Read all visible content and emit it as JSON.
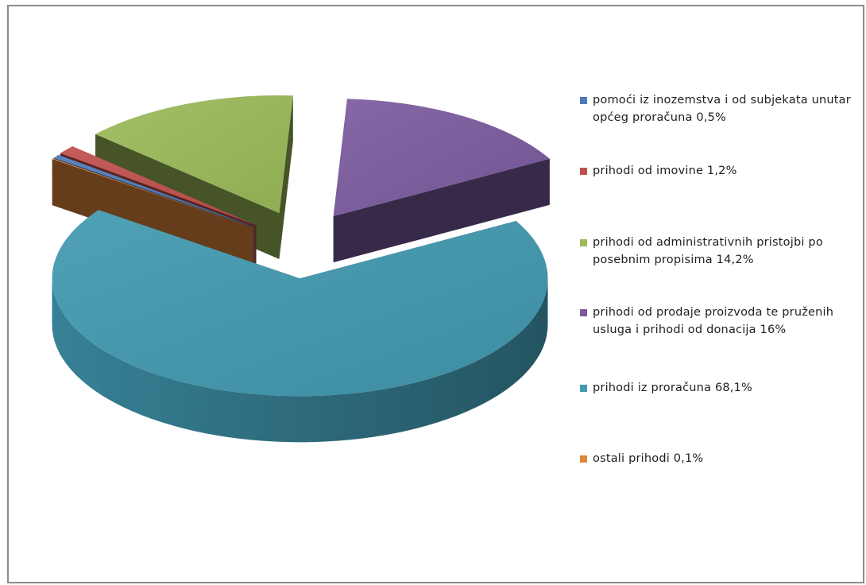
{
  "chart_data": {
    "type": "pie",
    "three_d": true,
    "exploded": true,
    "title": "",
    "legend_position": "right",
    "slices": [
      {
        "label": "pomoći iz inozemstva i od subjekata unutar općeg proračuna 0,5%",
        "value": 0.5,
        "color": "#4f7ab7"
      },
      {
        "label": "prihodi od imovine 1,2%",
        "value": 1.2,
        "color": "#c0504d"
      },
      {
        "label": "prihodi od administrativnih pristojbi po posebnim propisima 14,2%",
        "value": 14.2,
        "color": "#9bbb59"
      },
      {
        "label": "prihodi od prodaje proizvoda te pruženih usluga i prihodi od donacija 16%",
        "value": 16,
        "color": "#7b5b9f"
      },
      {
        "label": "prihodi iz proračuna 68,1%",
        "value": 68.1,
        "color": "#4198b0"
      },
      {
        "label": "ostali prihodi 0,1%",
        "value": 0.1,
        "color": "#e1873a"
      }
    ]
  }
}
